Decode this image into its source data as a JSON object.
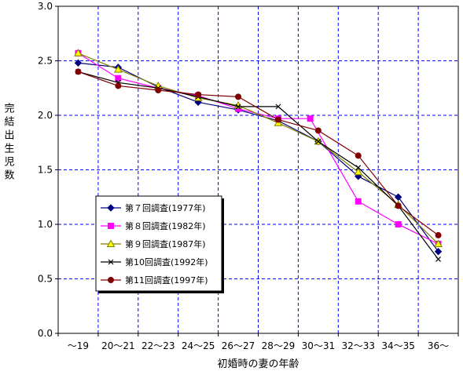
{
  "chart_data": {
    "type": "line",
    "title": "",
    "xlabel": "初婚時の妻の年齢",
    "ylabel": "完結出生児数",
    "ylim": [
      0.0,
      3.0
    ],
    "yticks": [
      "0.0",
      "0.5",
      "1.0",
      "1.5",
      "2.0",
      "2.5",
      "3.0"
    ],
    "grid": true,
    "legend_position": "center-left",
    "categories": [
      "～19",
      "20～21",
      "22～23",
      "24～25",
      "26～27",
      "28～29",
      "30～31",
      "32～33",
      "34～35",
      "36～"
    ],
    "series": [
      {
        "name": "第７回調査(1977年)",
        "color": "#000080",
        "marker": "diamond",
        "points": [
          [
            0,
            2.48
          ],
          [
            1,
            2.44
          ],
          [
            2,
            2.26
          ],
          [
            3,
            2.12
          ],
          [
            4,
            2.05
          ],
          [
            5,
            1.95
          ],
          [
            6,
            1.76
          ],
          [
            7,
            1.44
          ],
          [
            8,
            1.25
          ],
          [
            9,
            0.75
          ]
        ]
      },
      {
        "name": "第８回調査(1982年)",
        "color": "#FF00FF",
        "marker": "square",
        "points": [
          [
            0,
            2.57
          ],
          [
            1,
            2.34
          ],
          [
            2,
            2.25
          ],
          [
            3,
            2.18
          ],
          [
            4,
            2.06
          ],
          [
            5,
            1.97
          ],
          [
            5.8,
            1.97
          ],
          [
            7,
            1.21
          ],
          [
            8,
            1.0
          ],
          [
            9,
            0.82
          ]
        ]
      },
      {
        "name": "第９回調査(1987年)",
        "color": "#808000",
        "marker": "triangle",
        "points": [
          [
            0,
            2.57
          ],
          [
            1,
            2.42
          ],
          [
            2,
            2.27
          ],
          [
            3,
            2.16
          ],
          [
            4,
            2.09
          ],
          [
            5,
            1.93
          ],
          [
            6,
            1.76
          ],
          [
            7,
            1.48
          ],
          [
            8,
            1.18
          ],
          [
            9,
            0.82
          ]
        ]
      },
      {
        "name": "第10回調査(1992年)",
        "color": "#000000",
        "marker": "x",
        "points": [
          [
            0,
            2.4
          ],
          [
            1,
            2.3
          ],
          [
            2,
            2.25
          ],
          [
            3,
            2.17
          ],
          [
            4,
            2.08
          ],
          [
            5,
            2.08
          ],
          [
            6,
            1.76
          ],
          [
            7,
            1.52
          ],
          [
            8,
            1.17
          ],
          [
            9,
            0.68
          ]
        ]
      },
      {
        "name": "第11回調査(1997年)",
        "color": "#800000",
        "marker": "circle",
        "points": [
          [
            0,
            2.4
          ],
          [
            1,
            2.27
          ],
          [
            2,
            2.23
          ],
          [
            3,
            2.19
          ],
          [
            4,
            2.17
          ],
          [
            5,
            1.96
          ],
          [
            6,
            1.86
          ],
          [
            7,
            1.63
          ],
          [
            8,
            1.17
          ],
          [
            9,
            0.9
          ]
        ]
      }
    ]
  }
}
